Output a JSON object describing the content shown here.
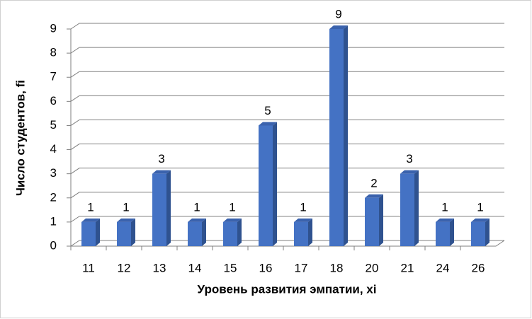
{
  "chart_data": {
    "type": "bar",
    "x_label": "Уровень развития эмпатии, xi",
    "y_label": "Число студентов, fi",
    "categories": [
      "11",
      "12",
      "13",
      "14",
      "15",
      "16",
      "17",
      "18",
      "20",
      "21",
      "24",
      "26"
    ],
    "values": [
      1,
      1,
      3,
      1,
      1,
      5,
      1,
      9,
      2,
      3,
      1,
      1
    ],
    "color": "#4472c4",
    "ylim": [
      0,
      9
    ],
    "yticks": [
      0,
      1,
      2,
      3,
      4,
      5,
      6,
      7,
      8,
      9
    ],
    "grid": true
  }
}
